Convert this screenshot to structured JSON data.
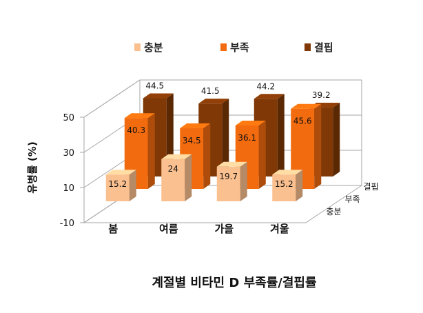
{
  "chart_data": {
    "type": "bar",
    "subtype": "3d-clustered-column",
    "title": "계절별 비타민 D 부족률/결핍률",
    "ylabel": "유병률 (%)",
    "xlabel": "",
    "categories": [
      "봄",
      "여름",
      "가을",
      "겨울"
    ],
    "depth_labels": [
      "충분",
      "부족",
      "결핍"
    ],
    "series": [
      {
        "name": "충분",
        "values": [
          15.2,
          24,
          19.7,
          15.2
        ],
        "color": "#FBC08F"
      },
      {
        "name": "부족",
        "values": [
          40.3,
          34.5,
          36.1,
          45.6
        ],
        "color": "#F26B0F"
      },
      {
        "name": "결핍",
        "values": [
          44.5,
          41.5,
          44.2,
          39.2
        ],
        "color": "#7F3806"
      }
    ],
    "y_ticks": [
      "50",
      "30",
      "10",
      "-10"
    ],
    "ylim": [
      -10,
      50
    ],
    "grid": true,
    "legend_position": "top"
  }
}
